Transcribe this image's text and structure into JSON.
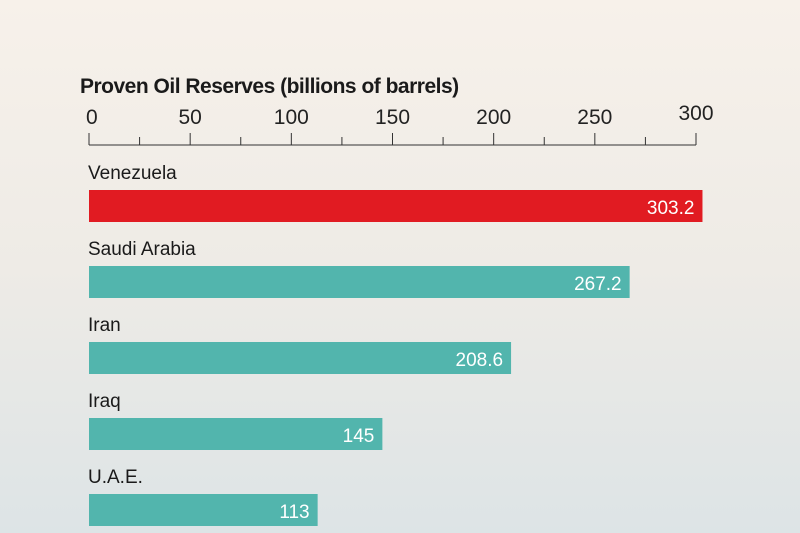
{
  "chart_data": {
    "type": "bar",
    "orientation": "horizontal",
    "title": "Proven Oil Reserves (billions of barrels)",
    "categories": [
      "Venezuela",
      "Saudi Arabia",
      "Iran",
      "Iraq",
      "U.A.E."
    ],
    "values": [
      303.2,
      267.2,
      208.6,
      145,
      113
    ],
    "value_labels": [
      "303.2",
      "267.2",
      "208.6",
      "145",
      "113"
    ],
    "xlim": [
      0,
      300
    ],
    "tick_labels": [
      "0",
      "50",
      "100",
      "150",
      "200",
      "250",
      "300"
    ],
    "minor_tick_step": 25,
    "colors": {
      "highlight": "#e11b22",
      "default": "#52b5ad"
    },
    "highlight_index": 0
  }
}
